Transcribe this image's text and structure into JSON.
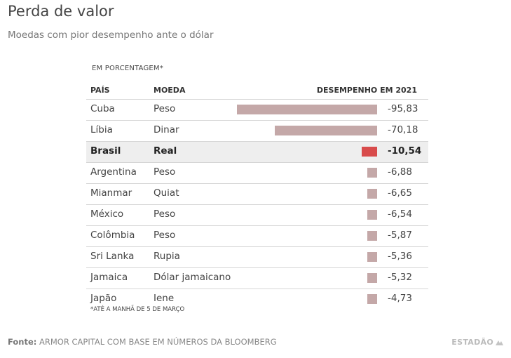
{
  "title": "Perda de valor",
  "subtitle": "Moedas com pior desempenho ante o dólar",
  "unit_label": "EM PORCENTAGEM*",
  "footnote": "*ATÉ A MANHÃ DE 5 DE MARÇO",
  "source_label": "Fonte:",
  "source_text": "ARMOR CAPITAL COM BASE EM NÚMEROS DA BLOOMBERG",
  "brand": "ESTADÃO",
  "colors": {
    "bar": "#c4a8a8",
    "highlight_bar": "#d84b4b",
    "highlight_row": "#eeeeee"
  },
  "chart_data": {
    "type": "table",
    "title": "Perda de valor",
    "subtitle": "Moedas com pior desempenho ante o dólar",
    "columns": [
      "PAÍS",
      "MOEDA",
      "DESEMPENHO EM 2021"
    ],
    "highlight": "Brasil",
    "max_abs": 95.83,
    "rows": [
      {
        "country": "Cuba",
        "currency": "Peso",
        "value": -95.83,
        "label": "-95,83"
      },
      {
        "country": "Líbia",
        "currency": "Dinar",
        "value": -70.18,
        "label": "-70,18"
      },
      {
        "country": "Brasil",
        "currency": "Real",
        "value": -10.54,
        "label": "-10,54"
      },
      {
        "country": "Argentina",
        "currency": "Peso",
        "value": -6.88,
        "label": "-6,88"
      },
      {
        "country": "Mianmar",
        "currency": "Quiat",
        "value": -6.65,
        "label": "-6,65"
      },
      {
        "country": "México",
        "currency": "Peso",
        "value": -6.54,
        "label": "-6,54"
      },
      {
        "country": "Colômbia",
        "currency": "Peso",
        "value": -5.87,
        "label": "-5,87"
      },
      {
        "country": "Sri Lanka",
        "currency": "Rupia",
        "value": -5.36,
        "label": "-5,36"
      },
      {
        "country": "Jamaica",
        "currency": "Dólar jamaicano",
        "value": -5.32,
        "label": "-5,32"
      },
      {
        "country": "Japão",
        "currency": "Iene",
        "value": -4.73,
        "label": "-4,73"
      }
    ]
  }
}
